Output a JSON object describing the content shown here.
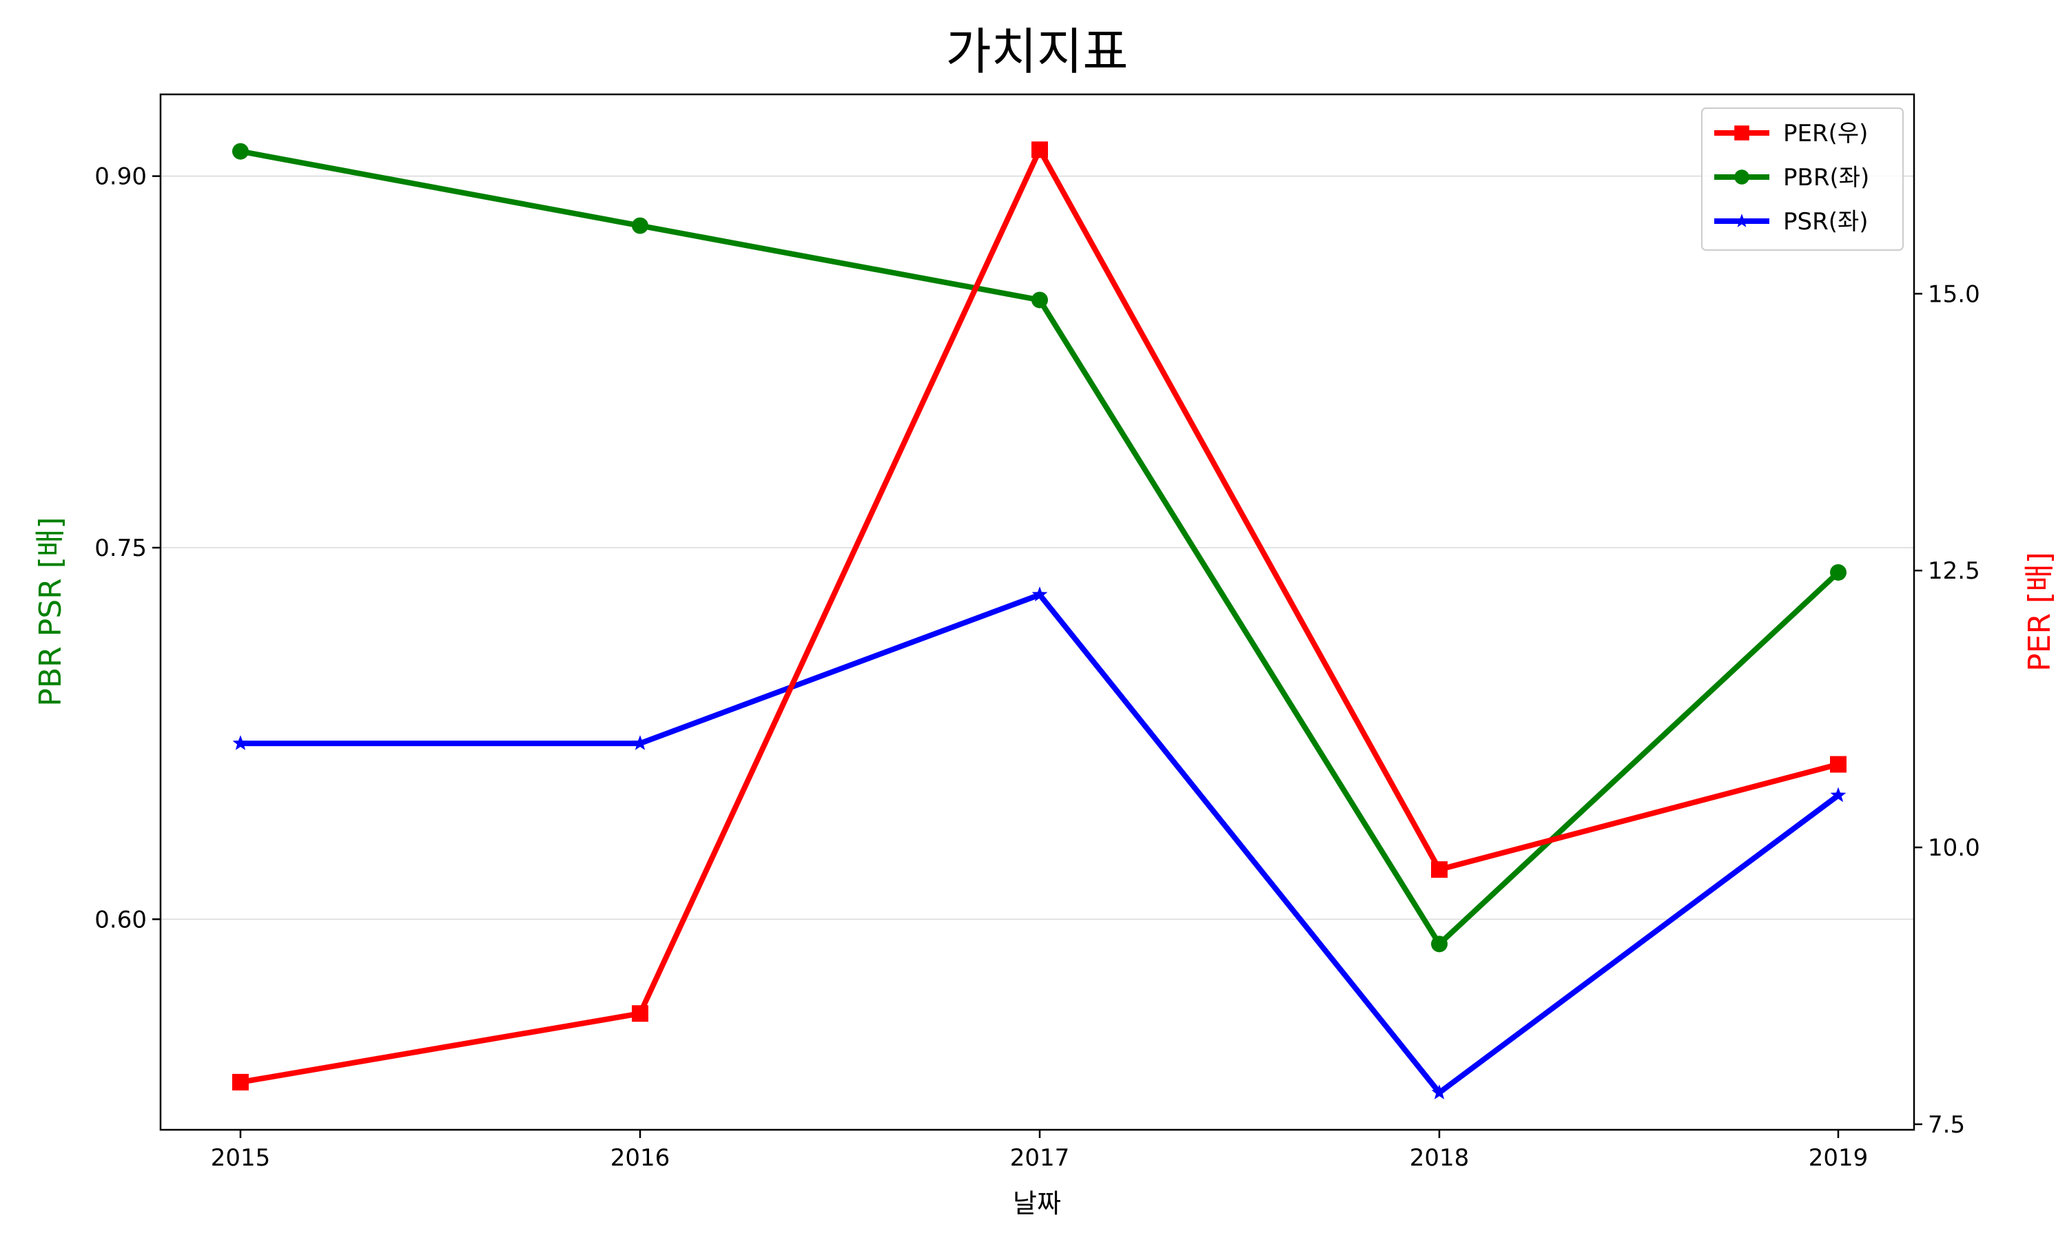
{
  "chart_data": {
    "type": "line",
    "title": "가치지표",
    "xlabel": "날짜",
    "ylabel_left": "PBR PSR [배]",
    "ylabel_right": "PER [배]",
    "categories": [
      "2015",
      "2016",
      "2017",
      "2018",
      "2019"
    ],
    "left_axis": {
      "ylim": [
        0.515,
        0.933
      ],
      "ticks": [
        0.6,
        0.75,
        0.9
      ],
      "tick_labels": [
        "0.60",
        "0.75",
        "0.90"
      ],
      "color": "#008000"
    },
    "right_axis": {
      "ylim": [
        7.45,
        16.8
      ],
      "ticks": [
        7.5,
        10.0,
        12.5,
        15.0
      ],
      "tick_labels": [
        "7.5",
        "10.0",
        "12.5",
        "15.0"
      ],
      "color": "#ff0000"
    },
    "grid": "horizontal, left axis",
    "legend_position": "top-right",
    "series": [
      {
        "name": "PER(우)",
        "axis": "right",
        "marker": "square",
        "color": "#ff0000",
        "values": [
          7.88,
          8.5,
          16.3,
          9.8,
          10.75
        ]
      },
      {
        "name": "PBR(좌)",
        "axis": "left",
        "marker": "circle",
        "color": "#008000",
        "values": [
          0.91,
          0.88,
          0.85,
          0.59,
          0.74
        ]
      },
      {
        "name": "PSR(좌)",
        "axis": "left",
        "marker": "star",
        "color": "#0000ff",
        "values": [
          0.671,
          0.671,
          0.731,
          0.53,
          0.65
        ]
      }
    ]
  }
}
